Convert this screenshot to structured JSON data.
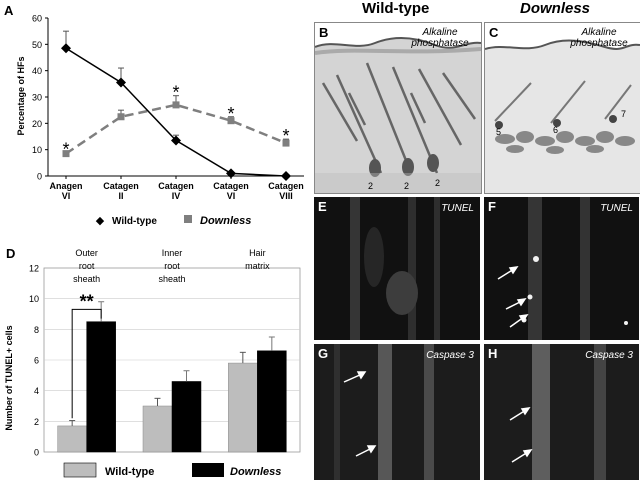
{
  "colors": {
    "wild_type": "#000000",
    "downless": "#7f7f7f",
    "bar_wild": "#bdbdbd",
    "bar_down": "#000000"
  },
  "figure": {
    "columns": {
      "wild_type": "Wild-type",
      "downless": "Downless"
    },
    "panels": {
      "A": "A",
      "B": "B",
      "C": "C",
      "D": "D",
      "E": "E",
      "F": "F",
      "G": "G",
      "H": "H"
    },
    "stains": {
      "B": "Alkaline phosphatase",
      "C": "Alkaline phosphatase",
      "E": "TUNEL",
      "F": "TUNEL",
      "G": "Caspase 3",
      "H": "Caspase 3"
    },
    "hf_numbers_B": [
      "2",
      "2",
      "2"
    ],
    "hf_numbers_C": [
      "5",
      "6",
      "7"
    ]
  },
  "chart_data": [
    {
      "type": "line",
      "panel": "A",
      "ylabel": "Percentage of HFs",
      "ylim": [
        0,
        60
      ],
      "yticks": [
        0,
        10,
        20,
        30,
        40,
        50,
        60
      ],
      "categories": [
        [
          "Anagen",
          "VI"
        ],
        [
          "Catagen",
          "II"
        ],
        [
          "Catagen",
          "IV"
        ],
        [
          "Catagen",
          "VI"
        ],
        [
          "Catagen",
          "VIII"
        ]
      ],
      "series": [
        {
          "name": "Wild-type",
          "values": [
            48.5,
            35.5,
            13.5,
            1,
            0
          ],
          "errors": [
            6.5,
            5.5,
            2,
            0,
            0
          ]
        },
        {
          "name": "Downless",
          "values": [
            8.5,
            22.5,
            27,
            21,
            12.5
          ],
          "errors": [
            0,
            2.5,
            3.5,
            1.5,
            1.5
          ]
        }
      ],
      "significance_markers": [
        "*",
        "*",
        "*",
        "*"
      ],
      "legend": "bottom"
    },
    {
      "type": "bar",
      "panel": "D",
      "ylabel": "Number of TUNEL+ cells",
      "ylim": [
        0,
        12
      ],
      "yticks": [
        0,
        2,
        4,
        6,
        8,
        10,
        12
      ],
      "categories": [
        "Outer root sheath",
        "Inner root sheath",
        "Hair matrix"
      ],
      "category_lines": [
        [
          "Outer",
          "root",
          "sheath"
        ],
        [
          "Inner",
          "root",
          "sheath"
        ],
        [
          "Hair",
          "matrix"
        ]
      ],
      "series": [
        {
          "name": "Wild-type",
          "values": [
            1.7,
            3.0,
            5.8
          ],
          "errors": [
            0.35,
            0.5,
            0.7
          ]
        },
        {
          "name": "Downless",
          "values": [
            8.5,
            4.6,
            6.6
          ],
          "errors": [
            1.3,
            0.7,
            0.9
          ]
        }
      ],
      "significance": "**",
      "legend": "bottom"
    }
  ]
}
